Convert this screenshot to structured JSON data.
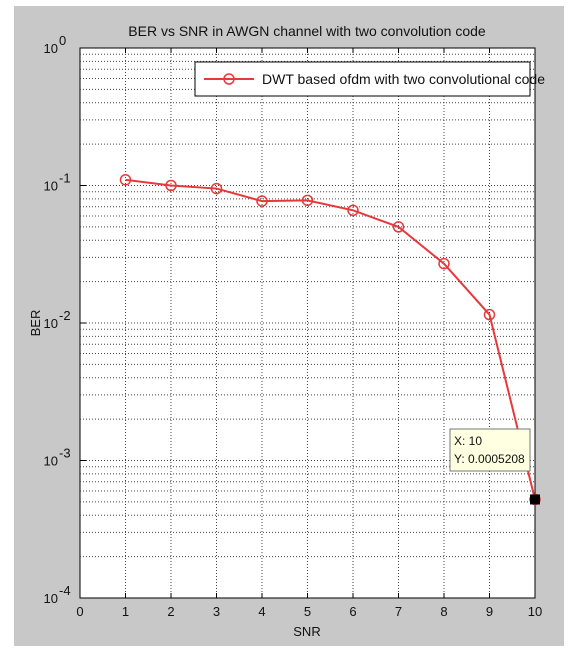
{
  "chart_data": {
    "type": "line",
    "title": "BER vs SNR in AWGN channel with two convolution code",
    "xlabel": "SNR",
    "ylabel": "BER",
    "xlim": [
      0,
      10
    ],
    "ylim": [
      0.0001,
      1
    ],
    "yscale": "log",
    "grid": true,
    "x_ticks": [
      0,
      1,
      2,
      3,
      4,
      5,
      6,
      7,
      8,
      9,
      10
    ],
    "y_ticks": [
      {
        "value": 1,
        "base": "10",
        "exp": "0"
      },
      {
        "value": 0.1,
        "base": "10",
        "exp": "-1"
      },
      {
        "value": 0.01,
        "base": "10",
        "exp": "-2"
      },
      {
        "value": 0.001,
        "base": "10",
        "exp": "-3"
      },
      {
        "value": 0.0001,
        "base": "10",
        "exp": "-4"
      }
    ],
    "legend_position": "top-right",
    "series": [
      {
        "name": "DWT based ofdm with two convolutional code",
        "color": "#e8383c",
        "marker": "circle",
        "x": [
          1,
          2,
          3,
          4,
          5,
          6,
          7,
          8,
          9,
          10
        ],
        "y": [
          0.11,
          0.1,
          0.095,
          0.077,
          0.078,
          0.066,
          0.05,
          0.027,
          0.0115,
          0.0005208
        ]
      }
    ],
    "datatip": {
      "x_text": "X: 10",
      "y_text": "Y: 0.0005208",
      "x": 10,
      "y": 0.0005208
    }
  }
}
